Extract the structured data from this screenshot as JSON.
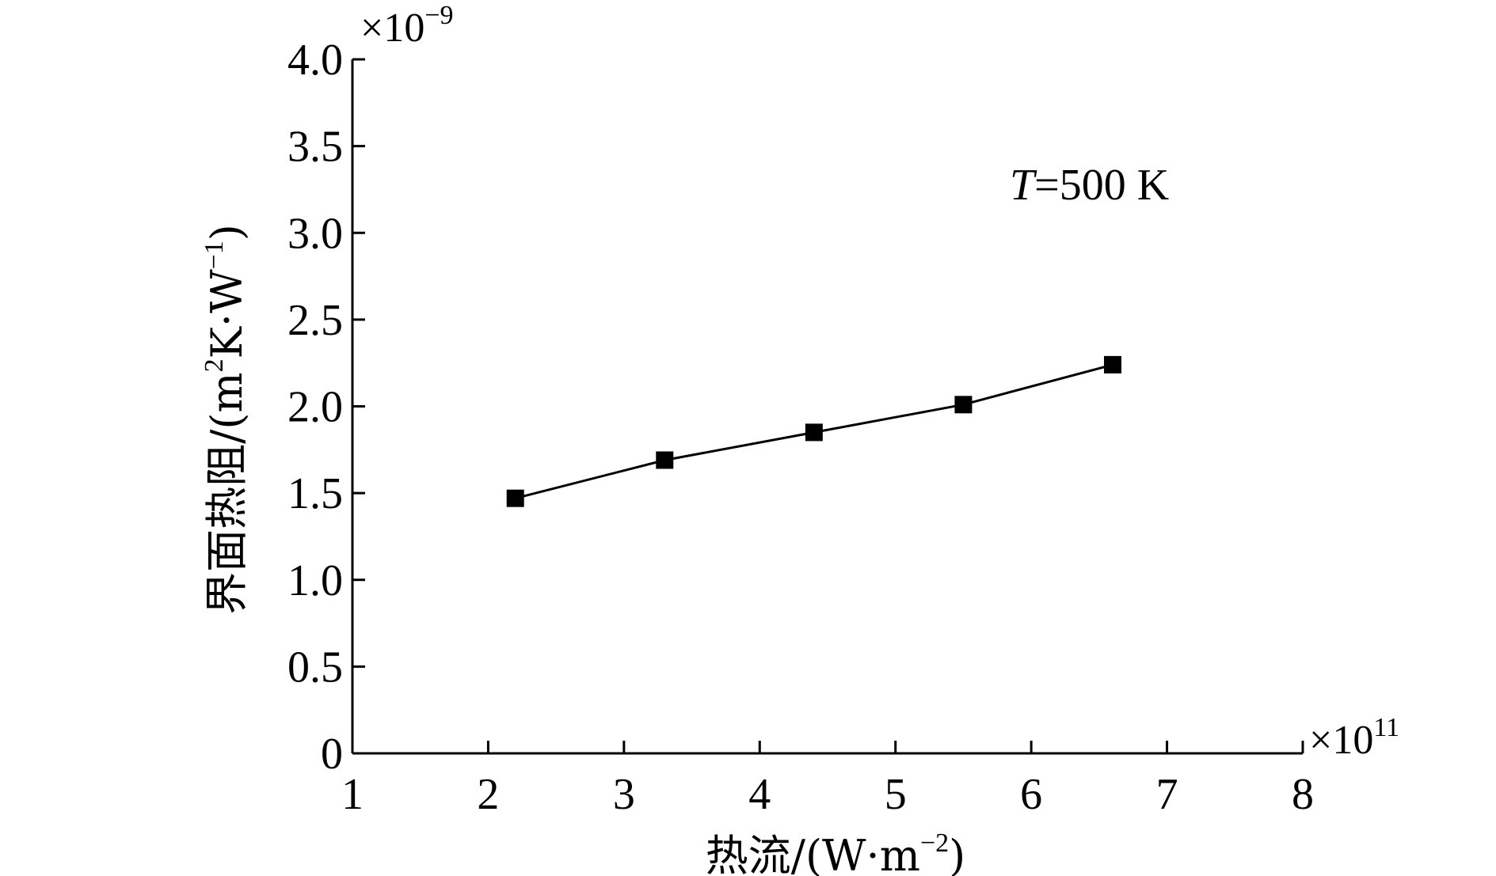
{
  "chart_data": {
    "type": "line",
    "title": "",
    "xlabel": {
      "main": "热流/(W·m",
      "sup": "−2",
      "close": ")"
    },
    "ylabel": {
      "main": "界面热阻/(m",
      "sup1": "2",
      "mid": "K·W",
      "sup2": "−1",
      "close": ")"
    },
    "x_multiplier": {
      "base": "×10",
      "exp": "11"
    },
    "y_multiplier": {
      "base": "×10",
      "exp": "−9"
    },
    "xlim": [
      1,
      8
    ],
    "ylim": [
      0,
      4.0
    ],
    "x_ticks": [
      "1",
      "2",
      "3",
      "4",
      "5",
      "6",
      "7",
      "8"
    ],
    "y_ticks": [
      "0",
      "0.5",
      "1.0",
      "1.5",
      "2.0",
      "2.5",
      "3.0",
      "3.5",
      "4.0"
    ],
    "grid": false,
    "annotation": {
      "italic": "T",
      "rest": "=500 K"
    },
    "series": [
      {
        "marker": "square",
        "color": "#000000",
        "x": [
          2.2,
          3.3,
          4.4,
          5.5,
          6.6
        ],
        "y": [
          1.47,
          1.69,
          1.85,
          2.01,
          2.24
        ]
      }
    ]
  }
}
